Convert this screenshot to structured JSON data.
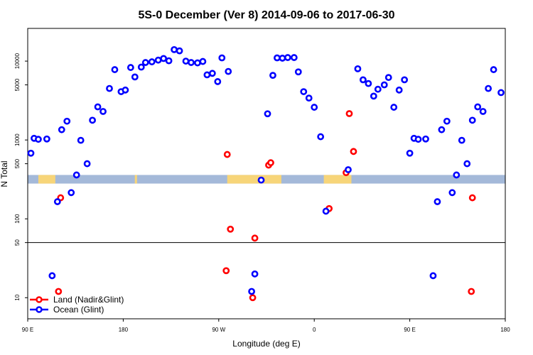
{
  "chart_data": {
    "type": "scatter",
    "title": "5S-0 December (Ver 8)   2014-09-06 to 2017-06-30",
    "xlabel": "Longitude (deg E)",
    "ylabel": "N Total",
    "x_ticks": [
      {
        "value": 90,
        "label": "90 E"
      },
      {
        "value": 180,
        "label": "180"
      },
      {
        "value": 270,
        "label": "90 W"
      },
      {
        "value": 360,
        "label": "0"
      },
      {
        "value": 450,
        "label": "90 E"
      },
      {
        "value": 540,
        "label": "180"
      }
    ],
    "y_ticks": [
      {
        "value": 10,
        "label": "10"
      },
      {
        "value": 50,
        "label": "50"
      },
      {
        "value": 100,
        "label": "100"
      },
      {
        "value": 500,
        "label": "500"
      },
      {
        "value": 1000,
        "label": "1000"
      },
      {
        "value": 5000,
        "label": "5000"
      },
      {
        "value": 10000,
        "label": "10000"
      }
    ],
    "xlim": [
      90,
      540
    ],
    "y_scale": "log",
    "ylim": [
      5.4,
      26000
    ],
    "break_line_y": 50,
    "land_ocean_strip": {
      "y_low": 280,
      "y_high": 360
    },
    "land_regions": [
      {
        "from": 100,
        "to": 116
      },
      {
        "from": 278,
        "to": 329
      },
      {
        "from": 369,
        "to": 395
      },
      {
        "from": 191,
        "to": 192
      },
      {
        "from": 191,
        "to": 193
      }
    ],
    "legend": {
      "position": "bottom-left",
      "entries": [
        "Land (Nadir&Glint)",
        "Ocean (Glint)"
      ]
    },
    "series": [
      {
        "name": "Land (Nadir&Glint)",
        "color": "#ff0000",
        "points": [
          [
            119,
            12
          ],
          [
            121,
            185
          ],
          [
            277,
            22
          ],
          [
            278,
            655
          ],
          [
            281,
            74
          ],
          [
            302,
            10
          ],
          [
            304,
            57
          ],
          [
            317,
            480
          ],
          [
            319,
            515
          ],
          [
            374,
            135
          ],
          [
            390,
            385
          ],
          [
            393,
            2160
          ],
          [
            397,
            715
          ],
          [
            508,
            12
          ],
          [
            509,
            185
          ]
        ]
      },
      {
        "name": "Ocean (Glint)",
        "color": "#0000ff",
        "points": [
          [
            93,
            680
          ],
          [
            96,
            1050
          ],
          [
            100,
            1020
          ],
          [
            108,
            1030
          ],
          [
            113,
            19
          ],
          [
            118,
            165
          ],
          [
            122,
            1350
          ],
          [
            127,
            1730
          ],
          [
            131,
            215
          ],
          [
            136,
            360
          ],
          [
            140,
            990
          ],
          [
            146,
            500
          ],
          [
            151,
            1780
          ],
          [
            156,
            2630
          ],
          [
            161,
            2300
          ],
          [
            167,
            4500
          ],
          [
            172,
            7800
          ],
          [
            178,
            4100
          ],
          [
            182,
            4300
          ],
          [
            187,
            8300
          ],
          [
            191,
            6300
          ],
          [
            197,
            8400
          ],
          [
            201,
            9600
          ],
          [
            207,
            9800
          ],
          [
            213,
            10300
          ],
          [
            218,
            10800
          ],
          [
            223,
            10100
          ],
          [
            228,
            14000
          ],
          [
            233,
            13500
          ],
          [
            239,
            10000
          ],
          [
            244,
            9600
          ],
          [
            250,
            9500
          ],
          [
            255,
            9900
          ],
          [
            259,
            6700
          ],
          [
            264,
            7000
          ],
          [
            269,
            5500
          ],
          [
            273,
            11000
          ],
          [
            279,
            7400
          ],
          [
            301,
            12
          ],
          [
            304,
            20
          ],
          [
            310,
            310
          ],
          [
            316,
            2150
          ],
          [
            321,
            6600
          ],
          [
            325,
            11000
          ],
          [
            330,
            10900
          ],
          [
            335,
            11100
          ],
          [
            341,
            11100
          ],
          [
            345,
            7300
          ],
          [
            350,
            4100
          ],
          [
            355,
            3400
          ],
          [
            360,
            2600
          ],
          [
            366,
            1100
          ],
          [
            371,
            125
          ],
          [
            392,
            420
          ],
          [
            401,
            8000
          ],
          [
            406,
            5800
          ],
          [
            411,
            5200
          ],
          [
            416,
            3600
          ],
          [
            420,
            4400
          ],
          [
            426,
            5000
          ],
          [
            430,
            6200
          ],
          [
            435,
            2600
          ],
          [
            440,
            4300
          ],
          [
            445,
            5800
          ],
          [
            450,
            680
          ],
          [
            454,
            1050
          ],
          [
            458,
            1020
          ],
          [
            465,
            1030
          ],
          [
            472,
            19
          ],
          [
            476,
            165
          ],
          [
            480,
            1350
          ],
          [
            485,
            1730
          ],
          [
            490,
            215
          ],
          [
            494,
            360
          ],
          [
            499,
            990
          ],
          [
            504,
            500
          ],
          [
            509,
            1780
          ],
          [
            514,
            2630
          ],
          [
            519,
            2300
          ],
          [
            524,
            4500
          ],
          [
            529,
            7800
          ],
          [
            536,
            3990
          ]
        ]
      }
    ]
  }
}
